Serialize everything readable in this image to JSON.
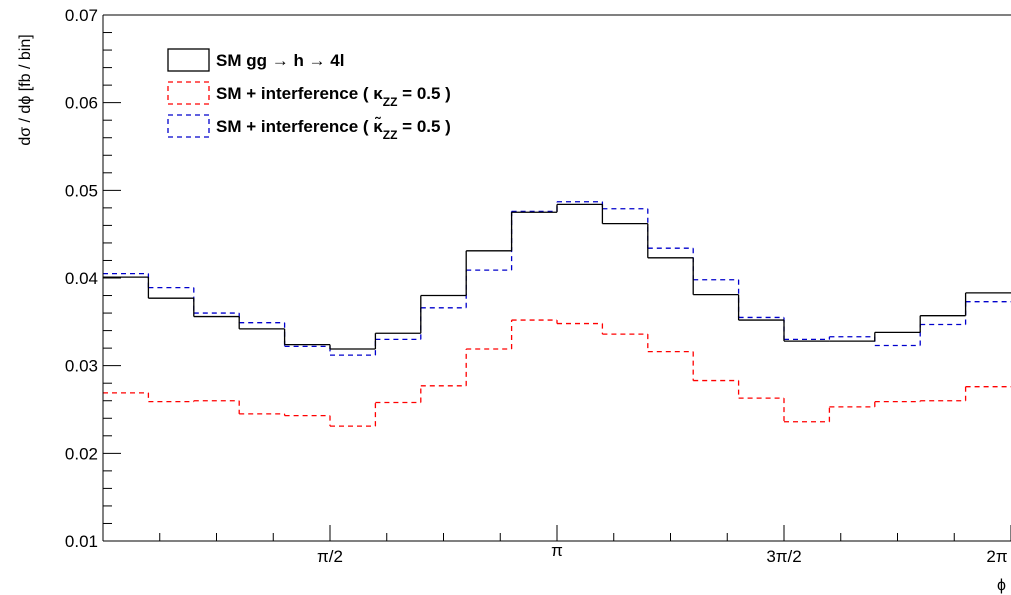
{
  "chart_data": {
    "type": "line",
    "style": "step-histogram",
    "title": "",
    "xlabel": "ϕ",
    "ylabel": "dσ / dϕ  [fb / bin]",
    "xlim": [
      0,
      6.2832
    ],
    "ylim": [
      0.01,
      0.07
    ],
    "bins": 20,
    "xticks": [
      {
        "value": 1.5708,
        "label": "π/2"
      },
      {
        "value": 3.1416,
        "label": "π"
      },
      {
        "value": 4.7124,
        "label": "3π/2"
      },
      {
        "value": 6.2832,
        "label": "2π"
      }
    ],
    "yticks": [
      "0.01",
      "0.02",
      "0.03",
      "0.04",
      "0.05",
      "0.06",
      "0.07"
    ],
    "grid": false,
    "legend": {
      "position": "top-left",
      "entries": [
        {
          "text": "SM gg → h → 4l",
          "series": 0
        },
        {
          "text": "SM + interference ( κ",
          "sub": "ZZ",
          "tail": " = 0.5 )",
          "series": 1
        },
        {
          "text": "SM + interference ( κ̃",
          "sub": "ZZ",
          "tail": " = 0.5 )",
          "series": 2
        }
      ]
    },
    "series": [
      {
        "name": "SM gg → h → 4l",
        "color": "#000000",
        "dash": "solid",
        "values": [
          0.0401,
          0.0377,
          0.0356,
          0.0342,
          0.0324,
          0.0319,
          0.0337,
          0.038,
          0.0431,
          0.0475,
          0.0484,
          0.0462,
          0.0423,
          0.0381,
          0.0352,
          0.0328,
          0.0328,
          0.0338,
          0.0357,
          0.0383
        ]
      },
      {
        "name": "SM + interference ( κZZ = 0.5 )",
        "color": "#ff0000",
        "dash": "dashed",
        "values": [
          0.0269,
          0.0259,
          0.026,
          0.0245,
          0.0243,
          0.0231,
          0.0258,
          0.0277,
          0.0319,
          0.0352,
          0.0348,
          0.0336,
          0.0316,
          0.0283,
          0.0263,
          0.0236,
          0.0253,
          0.0259,
          0.026,
          0.0276
        ]
      },
      {
        "name": "SM + interference ( κ̃ZZ = 0.5 )",
        "color": "#0000cc",
        "dash": "dashed",
        "values": [
          0.0405,
          0.0389,
          0.036,
          0.0349,
          0.0322,
          0.0312,
          0.033,
          0.0366,
          0.0409,
          0.0476,
          0.0487,
          0.0479,
          0.0434,
          0.0398,
          0.0355,
          0.033,
          0.0333,
          0.0323,
          0.0347,
          0.0373
        ]
      }
    ]
  }
}
